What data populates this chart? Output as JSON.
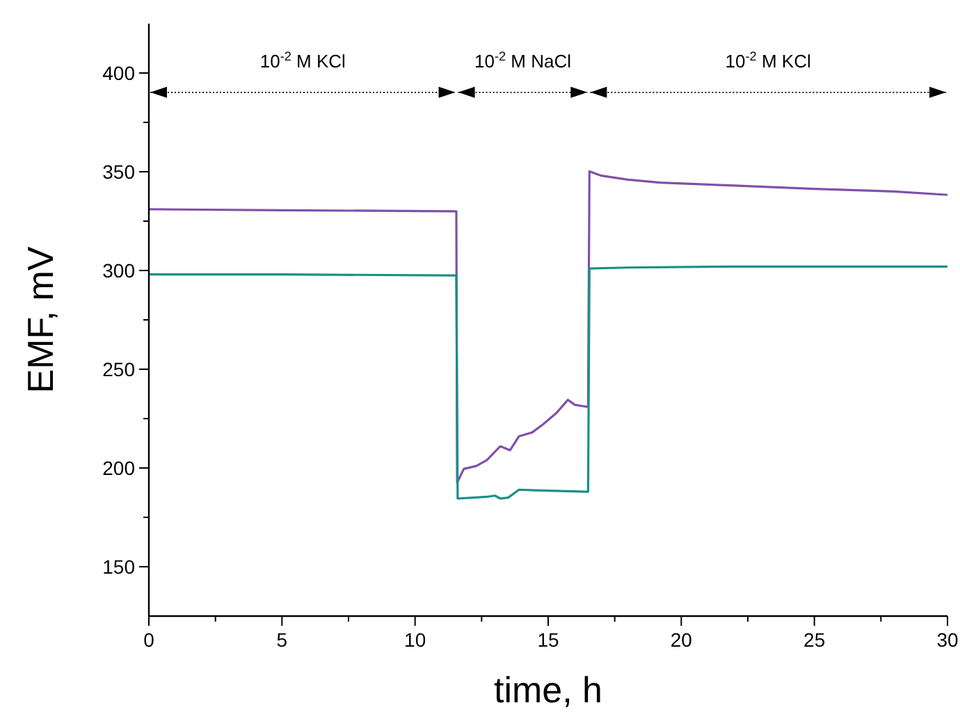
{
  "chart_data": {
    "type": "line",
    "xlabel": "time, h",
    "ylabel": "EMF, mV",
    "xlim": [
      0,
      30
    ],
    "ylim": [
      125,
      425
    ],
    "xticks": [
      0,
      {
        "value": 2.5,
        "label": null
      },
      5,
      {
        "value": 7.5,
        "label": null
      },
      10,
      {
        "value": 12.5,
        "label": null
      },
      15,
      {
        "value": 17.5,
        "label": null
      },
      20,
      {
        "value": 22.5,
        "label": null
      },
      25,
      {
        "value": 27.5,
        "label": null
      },
      30
    ],
    "yticks": [
      150,
      {
        "value": 175,
        "label": null
      },
      200,
      {
        "value": 225,
        "label": null
      },
      250,
      {
        "value": 275,
        "label": null
      },
      300,
      {
        "value": 325,
        "label": null
      },
      350,
      {
        "value": 375,
        "label": null
      },
      400
    ],
    "grid": false,
    "marker": "none",
    "line_style": "solid",
    "series": [
      {
        "color": "#8050a8",
        "x": [
          0,
          5,
          11.5,
          11.55,
          11.58,
          11.83,
          12.3,
          12.7,
          13.2,
          13.57,
          13.9,
          14.4,
          14.8,
          15.3,
          15.74,
          16.0,
          16.45,
          16.5,
          16.55,
          17,
          18,
          19.2,
          22,
          25,
          28,
          30
        ],
        "values": [
          331,
          330.5,
          330,
          330,
          192.5,
          199.5,
          201,
          204,
          211,
          209,
          216,
          218,
          222,
          227.7,
          234.5,
          232,
          231,
          231,
          350.2,
          348,
          346,
          344.5,
          343,
          341.3,
          340,
          338.3
        ]
      },
      {
        "color": "#1a9088",
        "x": [
          0,
          5,
          11.5,
          11.55,
          11.6,
          12.7,
          13.0,
          13.2,
          13.5,
          13.9,
          15,
          16.45,
          16.5,
          16.55,
          18,
          22,
          26,
          30
        ],
        "values": [
          298,
          298,
          297.5,
          297.5,
          184.5,
          185.4,
          186,
          184.5,
          185,
          189,
          188.5,
          188,
          188,
          301,
          301.5,
          302,
          302,
          302
        ]
      }
    ],
    "annotations": [
      "10$^{-2}$ M KCl",
      "10$^{-2}$ M NaCl",
      "10$^{-2}$ M KCl"
    ]
  }
}
